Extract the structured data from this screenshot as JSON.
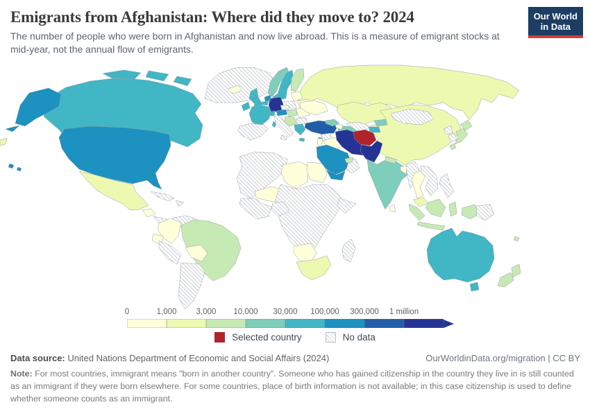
{
  "header": {
    "title": "Emigrants from Afghanistan: Where did they move to? 2024",
    "subtitle": "The number of people who were born in Afghanistan and now live abroad. This is a measure of emigrant stocks at mid-year, not the annual flow of emigrants.",
    "logo": {
      "line1": "Our World",
      "line2": "in Data",
      "bg_color": "#1d3d63",
      "accent_color": "#d93c32"
    }
  },
  "chart_data": {
    "type": "choropleth_map",
    "title": "Emigrants from Afghanistan: Where did they move to? 2024",
    "year": "2024",
    "unit": "people",
    "projection": "world",
    "color_scale": {
      "scale_type": "log-binned",
      "bins": [
        {
          "key": "0-1k",
          "label": "0",
          "color": "#ffffd9"
        },
        {
          "key": "1k-3k",
          "label": "1,000",
          "color": "#edf8b1"
        },
        {
          "key": "3k-10k",
          "label": "3,000",
          "color": "#c7e9b4"
        },
        {
          "key": "10k-30k",
          "label": "10,000",
          "color": "#7fcdbb"
        },
        {
          "key": "30k-100k",
          "label": "30,000",
          "color": "#41b6c4"
        },
        {
          "key": "100k-300k",
          "label": "100,000",
          "color": "#1d91c0"
        },
        {
          "key": "300k-1m",
          "label": "300,000",
          "color": "#225ea8"
        },
        {
          "key": "1m+",
          "label": "1 million",
          "color": "#253494"
        }
      ]
    },
    "selected_country": {
      "name": "Afghanistan",
      "color": "#b0232a",
      "legend_label": "Selected country"
    },
    "no_data": {
      "legend_label": "No data"
    },
    "countries": {
      "greenland": "no-data",
      "canada": "30k-100k",
      "alaska": "100k-300k",
      "usa": "100k-300k",
      "hawaii": "100k-300k",
      "mexico": "1k-3k",
      "guatemala": "0-1k",
      "panama-costa-rica": "no-data",
      "cuba": "no-data",
      "hispaniola": "no-data",
      "colombia": "0-1k",
      "venezuela": "no-data",
      "ecuador": "0-1k",
      "peru": "no-data",
      "brazil": "3k-10k",
      "bolivia": "0-1k",
      "argentina-chile": "no-data",
      "nw-africa": "no-data",
      "libya": "0-1k",
      "egypt": "0-1k",
      "mali-niger": "0-1k",
      "west-africa": "no-data",
      "nigeria": "no-data",
      "central-east-africa": "no-data",
      "horn-of-africa": "no-data",
      "namibia-botswana": "0-1k",
      "south-africa": "1k-3k",
      "madagascar": "no-data",
      "russia": "1k-3k",
      "russia-sliver": "1k-3k",
      "kazakhstan": "1k-3k",
      "uzbekistan": "no-data",
      "turkmenistan": "10k-30k",
      "kyrgyzstan": "10k-30k",
      "tajikistan": "30k-100k",
      "china": "1k-3k",
      "mongolia": "no-data",
      "iceland": "0-1k",
      "ireland": "30k-100k",
      "united-kingdom": "30k-100k",
      "norway": "10k-30k",
      "sweden": "30k-100k",
      "finland": "3k-10k",
      "denmark": "30k-100k",
      "baltics": "0-1k",
      "belarus": "0-1k",
      "poland": "no-data",
      "germany": "1m+",
      "netherlands": "100k-300k",
      "belgium": "30k-100k",
      "france": "30k-100k",
      "spain-portugal": "no-data",
      "italy": "no-data",
      "switzerland": "30k-100k",
      "austria": "100k-300k",
      "czechia": "no-data",
      "hungary": "3k-10k",
      "romania": "0-1k",
      "balkans": "3k-10k",
      "bulgaria": "no-data",
      "greece": "30k-100k",
      "ukraine": "0-1k",
      "turkey": "300k-1m",
      "cyprus": "30k-100k",
      "syria": "no-data",
      "iraq": "0-1k",
      "jordan-israel": "0-1k",
      "saudi-arabia": "100k-300k",
      "yemen": "100k-300k",
      "oman": "no-data",
      "uae": "3k-10k",
      "georgia-armenia": "10k-30k",
      "azerbaijan": "0-1k",
      "iran": "1m+",
      "afghanistan": "selected",
      "pakistan": "1m+",
      "india": "10k-30k",
      "nepal": "3k-10k",
      "bangladesh": "0-1k",
      "sri-lanka": "0-1k",
      "north-korea": "no-data",
      "south-korea": "no-data",
      "japan": "3k-10k",
      "myanmar": "no-data",
      "thailand": "0-1k",
      "laos-vietnam": "no-data",
      "philippines": "no-data",
      "malaysia": "1k-3k",
      "indonesia": "3k-10k",
      "papua-new-guinea": "no-data",
      "australia": "30k-100k",
      "tasmania": "30k-100k",
      "new-zealand": "3k-10k",
      "fiji": "3k-10k"
    }
  },
  "footer": {
    "data_source_label": "Data source:",
    "data_source_value": "United Nations Department of Economic and Social Affairs (2024)",
    "attribution": "OurWorldinData.org/migration | CC BY",
    "note_label": "Note:",
    "note_text": "For most countries, immigrant means \"born in another country\". Someone who has gained citizenship in the country they live in is still counted as an immigrant if they were born elsewhere. For some countries, place of birth information is not available; in this case citizenship is used to define whether someone counts as an immigrant."
  }
}
